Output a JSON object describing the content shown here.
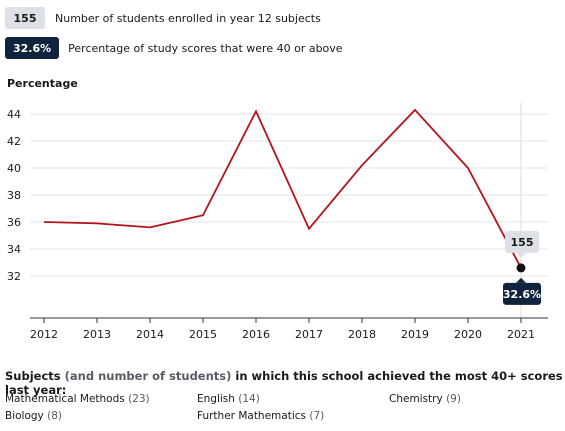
{
  "legend": {
    "students_badge": "155",
    "students_text": "Number of students enrolled in year 12 subjects",
    "score_badge": "32.6%",
    "score_text": "Percentage of study scores that were 40 or above"
  },
  "chart_data": {
    "type": "line",
    "ylabel": "Percentage",
    "categories": [
      "2012",
      "2013",
      "2014",
      "2015",
      "2016",
      "2017",
      "2018",
      "2019",
      "2020",
      "2021"
    ],
    "series": [
      {
        "values": [
          36.0,
          35.9,
          35.6,
          36.5,
          44.2,
          35.5,
          40.2,
          44.3,
          40.0,
          32.6
        ]
      }
    ],
    "yticks": [
      32,
      34,
      36,
      38,
      40,
      42,
      44
    ],
    "ylim": [
      30,
      45
    ],
    "grid": true,
    "line_color": "#b5121b",
    "highlight": {
      "category": "2021",
      "value": 32.6,
      "students_label": "155",
      "score_label": "32.6%"
    }
  },
  "subjects": {
    "title_bold": "Subjects",
    "title_muted": "(and number of students)",
    "title_rest": "in which this school achieved the most 40+ scores last year:",
    "items": [
      {
        "name": "Mathematical Methods",
        "count": "(23)"
      },
      {
        "name": "English",
        "count": "(14)"
      },
      {
        "name": "Chemistry",
        "count": "(9)"
      },
      {
        "name": "Biology",
        "count": "(8)"
      },
      {
        "name": "Further Mathematics",
        "count": "(7)"
      }
    ]
  }
}
